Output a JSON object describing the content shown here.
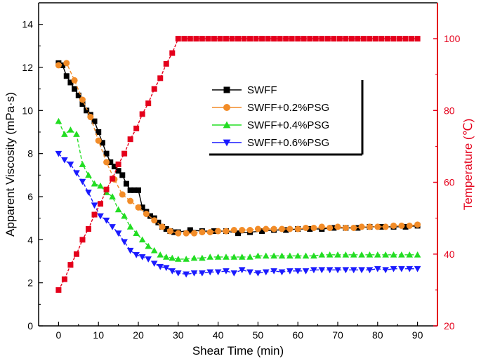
{
  "chart_data": {
    "type": "line",
    "xlabel": "Shear Time (min)",
    "ylabel": "Apparent Viscosity (mPa·s)",
    "y2label": "Temperature (℃)",
    "xlim": [
      -5,
      95
    ],
    "ylim": [
      0,
      15
    ],
    "y2lim": [
      20,
      110
    ],
    "x_ticks": [
      0,
      10,
      20,
      30,
      40,
      50,
      60,
      70,
      80,
      90
    ],
    "y_ticks": [
      0,
      2,
      4,
      6,
      8,
      10,
      12,
      14
    ],
    "y2_ticks": [
      20,
      40,
      60,
      80,
      100
    ],
    "legend_position": "top-right",
    "colors": {
      "axis": "#000000",
      "temperature_axis": "#e4001b"
    },
    "series": [
      {
        "name": "SWFF",
        "color": "#000000",
        "marker": "square",
        "axis": "left",
        "x": [
          0,
          1,
          2,
          3,
          4,
          5,
          6,
          7,
          8,
          9,
          10,
          11,
          12,
          13,
          14,
          15,
          16,
          17,
          18,
          19,
          20,
          21,
          22,
          23,
          24,
          25,
          26,
          27,
          28,
          29,
          30,
          33,
          36,
          39,
          42,
          45,
          48,
          51,
          54,
          57,
          60,
          63,
          66,
          69,
          72,
          75,
          78,
          81,
          84,
          87,
          90
        ],
        "y": [
          12.2,
          12.1,
          11.6,
          11.3,
          11.0,
          10.7,
          10.3,
          10.0,
          9.8,
          9.5,
          9.0,
          8.5,
          8.0,
          7.6,
          7.4,
          7.2,
          7.0,
          6.6,
          6.3,
          6.3,
          6.3,
          5.5,
          5.3,
          5.1,
          5.0,
          4.8,
          4.6,
          4.5,
          4.4,
          4.35,
          4.35,
          4.45,
          4.4,
          4.4,
          4.4,
          4.3,
          4.35,
          4.4,
          4.45,
          4.45,
          4.5,
          4.5,
          4.5,
          4.55,
          4.55,
          4.55,
          4.6,
          4.6,
          4.6,
          4.6,
          4.65
        ]
      },
      {
        "name": "SWFF+0.2%PSG",
        "color": "#f28c28",
        "marker": "circle",
        "axis": "left",
        "x": [
          0,
          2,
          4,
          6,
          8,
          10,
          12,
          14,
          16,
          18,
          20,
          22,
          24,
          26,
          28,
          30,
          32,
          34,
          36,
          38,
          40,
          42,
          44,
          46,
          48,
          50,
          52,
          54,
          56,
          58,
          60,
          62,
          64,
          66,
          68,
          70,
          72,
          74,
          76,
          78,
          80,
          82,
          84,
          86,
          88,
          90
        ],
        "y": [
          12.1,
          12.2,
          11.4,
          10.5,
          9.7,
          8.6,
          7.6,
          6.8,
          6.1,
          5.8,
          5.5,
          5.2,
          4.9,
          4.6,
          4.4,
          4.3,
          4.3,
          4.3,
          4.35,
          4.35,
          4.4,
          4.4,
          4.45,
          4.45,
          4.45,
          4.5,
          4.5,
          4.5,
          4.5,
          4.5,
          4.5,
          4.55,
          4.55,
          4.6,
          4.55,
          4.6,
          4.55,
          4.55,
          4.6,
          4.6,
          4.6,
          4.6,
          4.65,
          4.65,
          4.65,
          4.7
        ]
      },
      {
        "name": "SWFF+0.4%PSG",
        "color": "#22dd22",
        "marker": "triangle-up",
        "axis": "left",
        "x": [
          0,
          1.5,
          3,
          4.5,
          6,
          7.5,
          9,
          10.5,
          12,
          13.5,
          15,
          16.5,
          18,
          19.5,
          21,
          22.5,
          24,
          25.5,
          27,
          28.5,
          30,
          32,
          34,
          36,
          38,
          40,
          42,
          44,
          46,
          48,
          50,
          52,
          54,
          56,
          58,
          60,
          62,
          64,
          66,
          68,
          70,
          72,
          74,
          76,
          78,
          80,
          82,
          84,
          86,
          88,
          90
        ],
        "y": [
          9.5,
          8.9,
          9.1,
          8.9,
          7.5,
          7.0,
          6.6,
          6.5,
          6.2,
          6.0,
          5.4,
          5.1,
          4.6,
          4.3,
          4.0,
          3.7,
          3.5,
          3.3,
          3.2,
          3.15,
          3.1,
          3.1,
          3.15,
          3.15,
          3.2,
          3.2,
          3.2,
          3.2,
          3.2,
          3.2,
          3.25,
          3.25,
          3.25,
          3.25,
          3.25,
          3.25,
          3.25,
          3.25,
          3.3,
          3.3,
          3.3,
          3.3,
          3.3,
          3.3,
          3.3,
          3.3,
          3.3,
          3.3,
          3.3,
          3.3,
          3.3
        ]
      },
      {
        "name": "SWFF+0.6%PSG",
        "color": "#1a1aff",
        "marker": "triangle-down",
        "axis": "left",
        "x": [
          0,
          1.5,
          3,
          4.5,
          6,
          7.5,
          9,
          10.5,
          12,
          13.5,
          15,
          16.5,
          18,
          19.5,
          21,
          22.5,
          24,
          25.5,
          27,
          28.5,
          30,
          32,
          34,
          36,
          38,
          40,
          42,
          44,
          46,
          48,
          50,
          52,
          54,
          56,
          58,
          60,
          62,
          64,
          66,
          68,
          70,
          72,
          74,
          76,
          78,
          80,
          82,
          84,
          86,
          88,
          90
        ],
        "y": [
          8.0,
          7.7,
          7.5,
          7.1,
          6.7,
          6.2,
          5.6,
          5.1,
          4.9,
          4.6,
          4.3,
          3.9,
          3.5,
          3.3,
          3.2,
          3.1,
          2.9,
          2.75,
          2.7,
          2.55,
          2.45,
          2.4,
          2.45,
          2.45,
          2.5,
          2.5,
          2.55,
          2.45,
          2.6,
          2.5,
          2.45,
          2.5,
          2.55,
          2.5,
          2.55,
          2.55,
          2.55,
          2.6,
          2.6,
          2.6,
          2.6,
          2.6,
          2.6,
          2.6,
          2.6,
          2.65,
          2.6,
          2.65,
          2.65,
          2.65,
          2.65
        ]
      },
      {
        "name": "Temperature",
        "color": "#e4001b",
        "marker": "square",
        "axis": "right",
        "x": [
          0,
          1.5,
          3,
          4.5,
          6,
          7.5,
          9,
          10.5,
          12,
          13.5,
          15,
          16.5,
          18,
          19.5,
          21,
          22.5,
          24,
          25.5,
          27,
          28.5,
          30,
          31.5,
          33,
          34.5,
          36,
          37.5,
          39,
          40.5,
          42,
          43.5,
          45,
          46.5,
          48,
          49.5,
          51,
          52.5,
          54,
          55.5,
          57,
          58.5,
          60,
          61.5,
          63,
          64.5,
          66,
          67.5,
          69,
          70.5,
          72,
          73.5,
          75,
          76.5,
          78,
          79.5,
          81,
          82.5,
          84,
          85.5,
          87,
          88.5,
          90
        ],
        "y": [
          30,
          33,
          37,
          40,
          44,
          47,
          51,
          54,
          58,
          61,
          65,
          68,
          72,
          75,
          79,
          82,
          86,
          89,
          93,
          96,
          100,
          100,
          100,
          100,
          100,
          100,
          100,
          100,
          100,
          100,
          100,
          100,
          100,
          100,
          100,
          100,
          100,
          100,
          100,
          100,
          100,
          100,
          100,
          100,
          100,
          100,
          100,
          100,
          100,
          100,
          100,
          100,
          100,
          100,
          100,
          100,
          100,
          100,
          100,
          100,
          100
        ]
      }
    ],
    "legend_series": [
      0,
      1,
      2,
      3
    ]
  }
}
